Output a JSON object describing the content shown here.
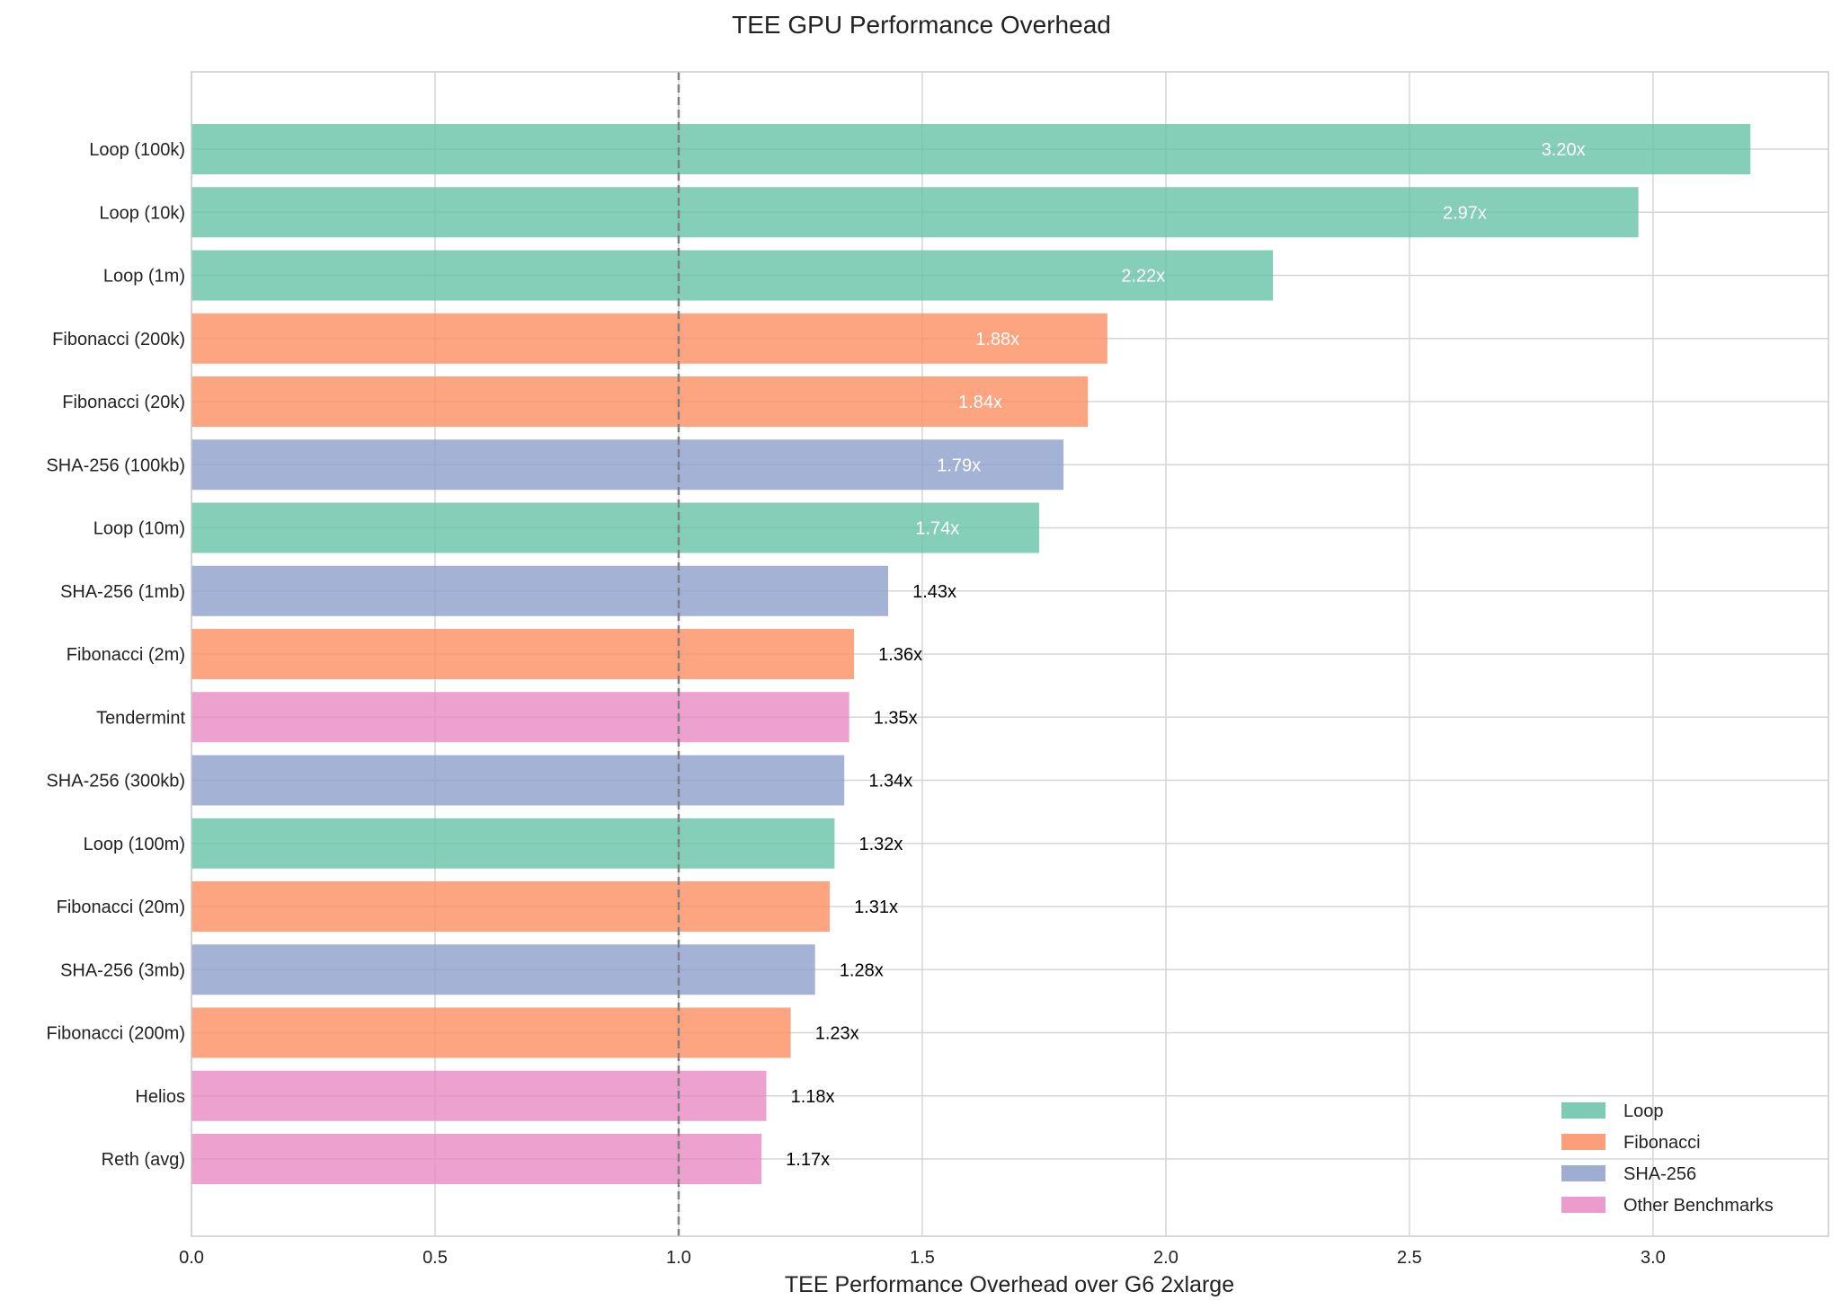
{
  "chart_data": {
    "type": "bar",
    "orientation": "horizontal",
    "title": "TEE GPU Performance Overhead",
    "xlabel": "TEE Performance Overhead over G6 2xlarge",
    "ylabel": "",
    "xlim": [
      0,
      3.36
    ],
    "xticks": [
      "0.0",
      "0.5",
      "1.0",
      "1.5",
      "2.0",
      "2.5",
      "3.0"
    ],
    "grid": true,
    "reference_line": {
      "x": 1.0,
      "style": "dashed",
      "color": "#808080"
    },
    "legend_position": "lower-right",
    "legend": [
      {
        "name": "Loop",
        "color": "#66c2a5"
      },
      {
        "name": "Fibonacci",
        "color": "#fc8d62"
      },
      {
        "name": "SHA-256",
        "color": "#8da0cb"
      },
      {
        "name": "Other Benchmarks",
        "color": "#e78ac3"
      }
    ],
    "categories": [
      "Loop (100k)",
      "Loop (10k)",
      "Loop (1m)",
      "Fibonacci (200k)",
      "Fibonacci (20k)",
      "SHA-256 (100kb)",
      "Loop (10m)",
      "SHA-256 (1mb)",
      "Fibonacci (2m)",
      "Tendermint",
      "SHA-256 (300kb)",
      "Loop (100m)",
      "Fibonacci (20m)",
      "SHA-256 (3mb)",
      "Fibonacci (200m)",
      "Helios",
      "Reth (avg)"
    ],
    "values": [
      3.2,
      2.97,
      2.22,
      1.88,
      1.84,
      1.79,
      1.74,
      1.43,
      1.36,
      1.35,
      1.34,
      1.32,
      1.31,
      1.28,
      1.23,
      1.18,
      1.17
    ],
    "groups": [
      0,
      0,
      0,
      1,
      1,
      2,
      0,
      2,
      1,
      3,
      2,
      0,
      1,
      2,
      1,
      3,
      3
    ],
    "data_labels": [
      "3.20x",
      "2.97x",
      "2.22x",
      "1.88x",
      "1.84x",
      "1.79x",
      "1.74x",
      "1.43x",
      "1.36x",
      "1.35x",
      "1.34x",
      "1.32x",
      "1.31x",
      "1.28x",
      "1.23x",
      "1.18x",
      "1.17x"
    ]
  }
}
